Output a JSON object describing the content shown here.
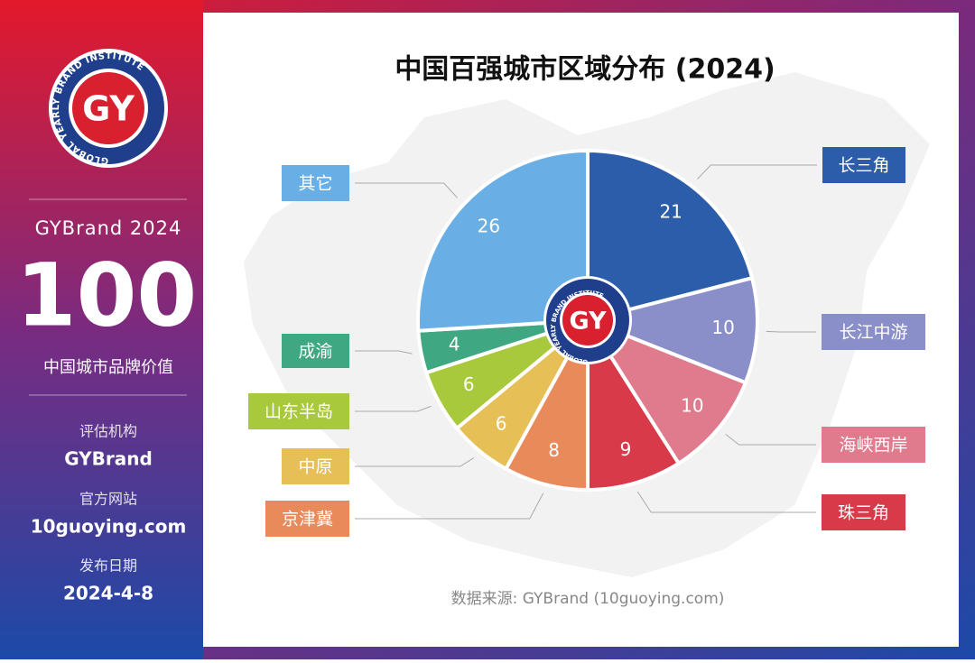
{
  "sidebar": {
    "logo_text": "GY",
    "logo_ring": "GLOBAL YEARLY BRAND INSTITUTE",
    "brand_year": "GYBrand 2024",
    "big_number": "100",
    "subtitle": "中国城市品牌价值",
    "org_label": "评估机构",
    "org": "GYBrand",
    "site_label": "官方网站",
    "site": "10guoying.com",
    "date_label": "发布日期",
    "date": "2024-4-8"
  },
  "chart_data": {
    "type": "pie",
    "title": "中国百强城市区域分布 (2024)",
    "categories": [
      "长三角",
      "长江中游",
      "海峡西岸",
      "珠三角",
      "京津冀",
      "中原",
      "山东半岛",
      "成渝",
      "其它"
    ],
    "values": [
      21,
      10,
      10,
      9,
      8,
      6,
      6,
      4,
      26
    ],
    "colors": [
      "#2c5dab",
      "#8a8fc9",
      "#e07a8d",
      "#d93a4a",
      "#e98a5b",
      "#e6c057",
      "#a9c93c",
      "#3fa883",
      "#6aaee6"
    ],
    "center_logo": "GY",
    "center_ring": "GLOBAL YEARLY BRAND INSTITUTE",
    "source": "数据来源: GYBrand (10guoying.com)"
  }
}
